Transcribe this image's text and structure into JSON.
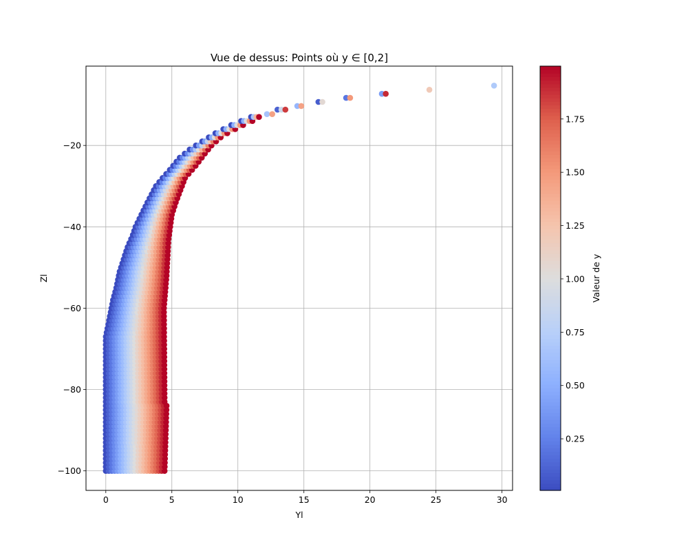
{
  "chart_data": {
    "type": "scatter",
    "title": "Vue de dessus: Points où y ∈ [0,2]",
    "xlabel": "Yl",
    "ylabel": "Zl",
    "xlim": [
      -1.5,
      30.8
    ],
    "ylim": [
      -104.8,
      -0.5
    ],
    "xticks": [
      0,
      5,
      10,
      15,
      20,
      25,
      30
    ],
    "yticks": [
      -100,
      -80,
      -60,
      -40,
      -20
    ],
    "grid": true,
    "colormap": "coolwarm",
    "color_variable": "y",
    "color_range": [
      0,
      2
    ],
    "colorbar": {
      "label": "Valeur de y",
      "ticks": [
        "0.25",
        "0.50",
        "0.75",
        "1.00",
        "1.25",
        "1.50",
        "1.75"
      ],
      "tick_values": [
        0.25,
        0.5,
        0.75,
        1.0,
        1.25,
        1.5,
        1.75
      ]
    },
    "region_description": {
      "z_range": [
        -100,
        -5
      ],
      "spacing": 1,
      "x_min_curve": "x ≈ 0 at z=-100 rising toward right as z increases",
      "x_max_curve": "x ≈ 4.5 at z≤-84, then 4.7 at z=-43, 5.6 at z=-30, 8 at z=-20, 11 at z=-14, 18.5 at z=-8"
    },
    "sparse_points": [
      {
        "x": 12.2,
        "z": -12.3,
        "y": 0.65
      },
      {
        "x": 12.6,
        "z": -12.3,
        "y": 1.45
      },
      {
        "x": 13.0,
        "z": -11.2,
        "y": 0.1
      },
      {
        "x": 13.3,
        "z": -11.2,
        "y": 0.9
      },
      {
        "x": 13.6,
        "z": -11.2,
        "y": 1.85
      },
      {
        "x": 14.5,
        "z": -10.3,
        "y": 0.55
      },
      {
        "x": 14.8,
        "z": -10.3,
        "y": 1.45
      },
      {
        "x": 16.1,
        "z": -9.3,
        "y": 0.08
      },
      {
        "x": 16.4,
        "z": -9.3,
        "y": 1.05
      },
      {
        "x": 18.2,
        "z": -8.3,
        "y": 0.2
      },
      {
        "x": 18.5,
        "z": -8.3,
        "y": 1.5
      },
      {
        "x": 20.9,
        "z": -7.3,
        "y": 0.4
      },
      {
        "x": 21.2,
        "z": -7.3,
        "y": 1.9
      },
      {
        "x": 24.5,
        "z": -6.3,
        "y": 1.2
      },
      {
        "x": 29.4,
        "z": -5.3,
        "y": 0.7
      }
    ]
  }
}
